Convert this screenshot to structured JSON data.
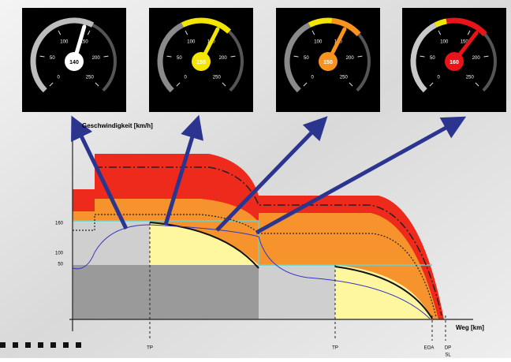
{
  "gauges": [
    {
      "ticks": [
        0,
        50,
        100,
        150,
        200,
        250
      ],
      "speed": 140
    },
    {
      "ticks": [
        0,
        50,
        100,
        150,
        200,
        250
      ],
      "speed": 150
    },
    {
      "ticks": [
        0,
        50,
        100,
        150,
        200,
        250
      ],
      "speed": 150
    },
    {
      "ticks": [
        0,
        50,
        100,
        150,
        200,
        250
      ],
      "speed": 160
    }
  ],
  "diagram": {
    "y_axis_label": "Geschwindigkeit [km/h]",
    "x_axis_label": "Weg [km]",
    "y_ticks": [
      160,
      100,
      50
    ],
    "x_markers": [
      "TP",
      "TP",
      "EOA",
      "DP",
      "SL"
    ]
  }
}
